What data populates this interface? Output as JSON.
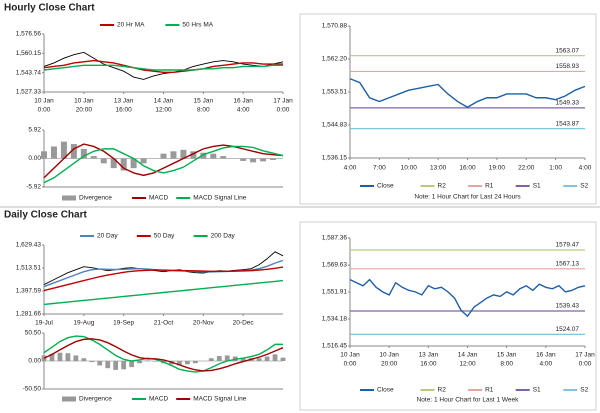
{
  "chart_data": [
    {
      "type": "line",
      "title": "Hourly Close Chart",
      "x": [
        0,
        1,
        2,
        3,
        4,
        5,
        6,
        7,
        8,
        9,
        10,
        11,
        12,
        13,
        14,
        15,
        16,
        17,
        18,
        19,
        20,
        21,
        22,
        23,
        24
      ],
      "xlim": [
        0,
        24
      ],
      "xticks": [
        {
          "value": 0,
          "label": [
            "10 Jan",
            "0:00"
          ]
        },
        {
          "value": 4,
          "label": [
            "10 Jan",
            "20:00"
          ]
        },
        {
          "value": 8,
          "label": [
            "13 Jan",
            "16:00"
          ]
        },
        {
          "value": 12,
          "label": [
            "14 Jan",
            "12:00"
          ]
        },
        {
          "value": 16,
          "label": [
            "15 Jan",
            "8:00"
          ]
        },
        {
          "value": 20,
          "label": [
            "16 Jan",
            "4:00"
          ]
        },
        {
          "value": 24,
          "label": [
            "17 Jan",
            "0:00"
          ]
        }
      ],
      "ylim": [
        1527.33,
        1576.56
      ],
      "yticks": [
        {
          "value": 1527.33,
          "label": "1,527.33"
        },
        {
          "value": 1543.74,
          "label": "1,543.74"
        },
        {
          "value": 1560.15,
          "label": "1,560.15"
        },
        {
          "value": 1576.56,
          "label": "1,576.56"
        }
      ],
      "series": [
        {
          "color": "#000000",
          "values": [
            1549,
            1552,
            1556,
            1559,
            1561,
            1556,
            1551,
            1548,
            1545,
            1540,
            1538,
            1541,
            1543,
            1544,
            1546,
            1549,
            1551,
            1553,
            1554,
            1553,
            1551,
            1550,
            1549,
            1551,
            1553
          ]
        },
        {
          "name": "20 Hr MA",
          "color": "#c00000",
          "values": [
            1548,
            1549,
            1550,
            1552,
            1553,
            1554,
            1553,
            1552,
            1550,
            1548,
            1546,
            1545,
            1544,
            1544,
            1545,
            1546,
            1547,
            1549,
            1550,
            1551,
            1552,
            1552,
            1551,
            1551,
            1551
          ]
        },
        {
          "name": "50 Hrs MA",
          "color": "#00b050",
          "values": [
            1546,
            1547,
            1548,
            1549,
            1550,
            1550,
            1550,
            1550,
            1549,
            1548,
            1547,
            1546,
            1546,
            1546,
            1546,
            1546,
            1547,
            1547,
            1548,
            1548,
            1549,
            1549,
            1549,
            1550,
            1550
          ]
        }
      ]
    },
    {
      "type": "macd",
      "x": [
        0,
        1,
        2,
        3,
        4,
        5,
        6,
        7,
        8,
        9,
        10,
        11,
        12,
        13,
        14,
        15,
        16,
        17,
        18,
        19,
        20,
        21,
        22,
        23,
        24
      ],
      "xlim": [
        0,
        24
      ],
      "ylim": [
        -5.92,
        5.92
      ],
      "yticks": [
        {
          "value": -5.92,
          "label": "-5.92"
        },
        {
          "value": 0,
          "label": "0.00"
        },
        5.92
      ],
      "series": [
        {
          "name": "Divergence",
          "style": "bar",
          "color": "#999999",
          "values": [
            1.5,
            2.5,
            3.5,
            3,
            2,
            0.5,
            -1,
            -2,
            -2.5,
            -2,
            -1,
            0,
            1,
            1.5,
            1.8,
            1.5,
            1.2,
            1,
            0.5,
            0,
            -0.5,
            -0.8,
            -0.6,
            -0.3,
            0
          ]
        },
        {
          "name": "MACD",
          "color": "#a00000",
          "values": [
            -4,
            -2,
            0,
            2,
            3,
            2.5,
            1.5,
            0,
            -2,
            -3,
            -3.5,
            -3,
            -2,
            -1,
            0,
            1,
            2,
            2.5,
            2.8,
            2.5,
            2,
            1.5,
            1,
            0.8,
            0.6
          ]
        },
        {
          "name": "MACD Signal Line",
          "color": "#00b050",
          "values": [
            -5,
            -4,
            -2.5,
            -1,
            0.5,
            1.5,
            2,
            2,
            1,
            0,
            -1.5,
            -2.5,
            -3,
            -2.5,
            -1.8,
            -0.5,
            0.8,
            1.5,
            2.2,
            2.5,
            2.5,
            2.3,
            1.6,
            1.1,
            0.6
          ]
        }
      ]
    },
    {
      "type": "line",
      "note": "Note: 1 Hour Chart for Last 24 Hours",
      "x": [
        0,
        1,
        2,
        3,
        4,
        5,
        6,
        7,
        8,
        9,
        10,
        11,
        12,
        13,
        14,
        15,
        16,
        17,
        18,
        19,
        20,
        21,
        22,
        23,
        24
      ],
      "xlim": [
        0,
        24
      ],
      "xticks": [
        {
          "value": 0,
          "label": "4:00"
        },
        {
          "value": 3,
          "label": "7:00"
        },
        {
          "value": 6,
          "label": "10:00"
        },
        {
          "value": 9,
          "label": "13:00"
        },
        {
          "value": 12,
          "label": "16:00"
        },
        {
          "value": 15,
          "label": "19:00"
        },
        {
          "value": 18,
          "label": "22:00"
        },
        {
          "value": 21,
          "label": "1:00"
        },
        {
          "value": 24,
          "label": "4:00"
        }
      ],
      "ylim": [
        1536.15,
        1570.88
      ],
      "yticks": [
        {
          "value": 1536.15,
          "label": "1,536.15"
        },
        {
          "value": 1544.83,
          "label": "1,544.83"
        },
        {
          "value": 1553.51,
          "label": "1,553.51"
        },
        {
          "value": 1562.2,
          "label": "1,562.20"
        },
        {
          "value": 1570.88,
          "label": "1,570.88"
        }
      ],
      "series": [
        {
          "name": "Close",
          "color": "#1f5fa6",
          "values": [
            1557,
            1556,
            1552,
            1551,
            1552,
            1553,
            1554,
            1554.5,
            1555,
            1555.5,
            1553,
            1551,
            1549.5,
            1551,
            1552,
            1552,
            1553,
            1553,
            1553,
            1552,
            1552,
            1551.5,
            1552.5,
            1554,
            1555
          ]
        }
      ],
      "levels": [
        {
          "name": "R2",
          "value": 1563.07,
          "color": "#b5cc7a"
        },
        {
          "name": "R1",
          "value": 1558.93,
          "color": "#e6a4a3"
        },
        {
          "name": "S1",
          "value": 1549.33,
          "color": "#8064a2"
        },
        {
          "name": "S2",
          "value": 1543.87,
          "color": "#7fc4da"
        }
      ]
    },
    {
      "type": "line",
      "title": "Daily Close Chart",
      "x": [
        0,
        1,
        2,
        3,
        4,
        5,
        6,
        7,
        8,
        9,
        10,
        11,
        12,
        13,
        14,
        15,
        16,
        17,
        18,
        19,
        20,
        21,
        22,
        23,
        24,
        25,
        26,
        27,
        28,
        29,
        30
      ],
      "xlim": [
        0,
        30
      ],
      "xticks": [
        {
          "value": 0,
          "label": "19-Jul"
        },
        {
          "value": 5,
          "label": "19-Aug"
        },
        {
          "value": 10,
          "label": "19-Sep"
        },
        {
          "value": 15,
          "label": "21-Oct"
        },
        {
          "value": 20,
          "label": "20-Nov"
        },
        {
          "value": 25,
          "label": "20-Dec"
        }
      ],
      "ylim": [
        1281.66,
        1629.43
      ],
      "yticks": [
        {
          "value": 1281.66,
          "label": "1,281.66"
        },
        {
          "value": 1397.59,
          "label": "1,397.59"
        },
        {
          "value": 1513.51,
          "label": "1,513.51"
        },
        {
          "value": 1629.43,
          "label": "1,629.43"
        }
      ],
      "series": [
        {
          "color": "#000000",
          "values": [
            1430,
            1450,
            1470,
            1490,
            1505,
            1520,
            1515,
            1508,
            1500,
            1505,
            1512,
            1515,
            1510,
            1505,
            1500,
            1495,
            1500,
            1505,
            1495,
            1490,
            1488,
            1495,
            1500,
            1498,
            1502,
            1505,
            1510,
            1530,
            1560,
            1595,
            1575
          ]
        },
        {
          "name": "20 Day",
          "color": "#4f81bd",
          "values": [
            1420,
            1435,
            1450,
            1465,
            1480,
            1495,
            1505,
            1508,
            1507,
            1506,
            1507,
            1509,
            1510,
            1508,
            1505,
            1502,
            1500,
            1499,
            1498,
            1496,
            1494,
            1494,
            1495,
            1496,
            1498,
            1500,
            1503,
            1510,
            1522,
            1538,
            1552
          ]
        },
        {
          "name": "50 Day",
          "color": "#c00000",
          "values": [
            1400,
            1410,
            1420,
            1430,
            1440,
            1450,
            1460,
            1470,
            1478,
            1485,
            1492,
            1497,
            1500,
            1502,
            1503,
            1503,
            1502,
            1501,
            1500,
            1499,
            1498,
            1497,
            1497,
            1497,
            1498,
            1499,
            1500,
            1503,
            1507,
            1512,
            1518
          ]
        },
        {
          "name": "200 Day",
          "color": "#00b050",
          "values": [
            1330,
            1334,
            1338,
            1342,
            1346,
            1350,
            1354,
            1358,
            1362,
            1366,
            1370,
            1374,
            1378,
            1382,
            1386,
            1390,
            1394,
            1398,
            1402,
            1406,
            1410,
            1414,
            1418,
            1422,
            1426,
            1430,
            1434,
            1438,
            1442,
            1446,
            1450
          ]
        }
      ]
    },
    {
      "type": "macd",
      "x": [
        0,
        1,
        2,
        3,
        4,
        5,
        6,
        7,
        8,
        9,
        10,
        11,
        12,
        13,
        14,
        15,
        16,
        17,
        18,
        19,
        20,
        21,
        22,
        23,
        24,
        25,
        26,
        27,
        28,
        29,
        30
      ],
      "xlim": [
        0,
        30
      ],
      "ylim": [
        -50.5,
        50.5
      ],
      "yticks": [
        {
          "value": -50.5,
          "label": "-50.50"
        },
        {
          "value": 0,
          "label": "0.00"
        },
        {
          "value": 50.5,
          "label": "50.50"
        }
      ],
      "series": [
        {
          "name": "Divergence",
          "style": "bar",
          "color": "#999999",
          "values": [
            10,
            13,
            15,
            14,
            10,
            5,
            -2,
            -8,
            -13,
            -16,
            -15,
            -11,
            -4,
            1,
            -1,
            -4,
            -6,
            -8,
            -6,
            -4,
            0,
            5,
            9,
            10,
            8,
            6,
            5,
            5,
            8,
            12,
            6
          ]
        },
        {
          "name": "MACD",
          "color": "#00b050",
          "values": [
            15,
            25,
            35,
            42,
            45,
            44,
            38,
            30,
            20,
            10,
            3,
            0,
            2,
            5,
            3,
            -2,
            -8,
            -15,
            -18,
            -20,
            -18,
            -12,
            -5,
            0,
            3,
            5,
            8,
            12,
            20,
            30,
            30
          ]
        },
        {
          "name": "MACD Signal Line",
          "color": "#a00000",
          "values": [
            5,
            12,
            20,
            28,
            35,
            39,
            40,
            38,
            33,
            26,
            18,
            11,
            6,
            4,
            4,
            2,
            -2,
            -7,
            -12,
            -16,
            -18,
            -17,
            -14,
            -10,
            -5,
            -1,
            3,
            7,
            12,
            18,
            24
          ]
        }
      ]
    },
    {
      "type": "line",
      "note": "Note: 1 Hour Chart for Last 1 Week",
      "x": [
        0,
        1,
        2,
        3,
        4,
        5,
        6,
        7,
        8,
        9,
        10,
        11,
        12,
        13,
        14,
        15,
        16,
        17,
        18,
        19,
        20,
        21,
        22,
        23,
        24,
        25,
        26,
        27,
        28,
        29,
        30,
        31,
        32,
        33,
        34,
        35,
        36
      ],
      "xlim": [
        0,
        36
      ],
      "xticks": [
        {
          "value": 0,
          "label": [
            "10 Jan",
            "0:00"
          ]
        },
        {
          "value": 6,
          "label": [
            "10 Jan",
            "20:00"
          ]
        },
        {
          "value": 12,
          "label": [
            "13 Jan",
            "16:00"
          ]
        },
        {
          "value": 18,
          "label": [
            "14 Jan",
            "12:00"
          ]
        },
        {
          "value": 24,
          "label": [
            "15 Jan",
            "8:00"
          ]
        },
        {
          "value": 30,
          "label": [
            "16 Jan",
            "4:00"
          ]
        },
        {
          "value": 36,
          "label": [
            "17 Jan",
            "0:00"
          ]
        }
      ],
      "ylim": [
        1516.45,
        1587.36
      ],
      "yticks": [
        {
          "value": 1516.45,
          "label": "1,516.45"
        },
        {
          "value": 1534.18,
          "label": "1,534.18"
        },
        {
          "value": 1551.91,
          "label": "1,551.91"
        },
        {
          "value": 1569.63,
          "label": "1,569.63"
        },
        {
          "value": 1587.36,
          "label": "1,587.36"
        }
      ],
      "series": [
        {
          "name": "Close",
          "color": "#1f5fa6",
          "values": [
            1560,
            1558,
            1556,
            1560,
            1555,
            1552,
            1550,
            1558,
            1555,
            1553,
            1552,
            1550,
            1556,
            1554,
            1555,
            1552,
            1548,
            1540,
            1536,
            1542,
            1545,
            1548,
            1550,
            1549,
            1552,
            1550,
            1554,
            1556,
            1553,
            1557,
            1555,
            1554,
            1556,
            1552,
            1553,
            1555,
            1556
          ]
        }
      ],
      "levels": [
        {
          "name": "R2",
          "value": 1579.47,
          "color": "#b5cc7a"
        },
        {
          "name": "R1",
          "value": 1567.13,
          "color": "#e6a4a3"
        },
        {
          "name": "S1",
          "value": 1539.43,
          "color": "#8064a2"
        },
        {
          "name": "S2",
          "value": 1524.07,
          "color": "#7fc4da"
        }
      ]
    }
  ]
}
